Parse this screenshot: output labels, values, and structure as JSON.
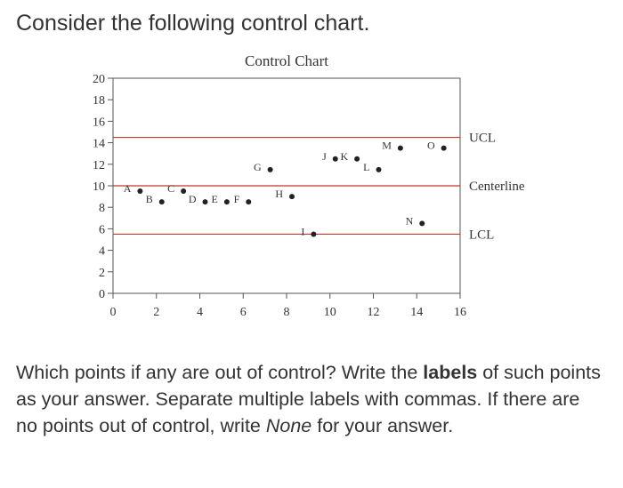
{
  "intro": "Consider the following control chart.",
  "question": {
    "part1": "Which points if any are out of control? Write the ",
    "bold": "labels",
    "part2": " of such points as your answer. Separate multiple labels with commas. If there are no points out of control, write ",
    "italic": "None",
    "part3": " for your answer."
  },
  "colors": {
    "limit_line": "#c0392b",
    "plot_frame": "#555555",
    "point": "#222222",
    "text": "#333333"
  },
  "chart_data": {
    "type": "scatter",
    "title": "Control Chart",
    "xlabel": "",
    "ylabel": "",
    "xlim": [
      0,
      16
    ],
    "ylim": [
      0,
      20
    ],
    "x_ticks": [
      0,
      2,
      4,
      6,
      8,
      10,
      12,
      14,
      16
    ],
    "y_ticks": [
      0,
      2,
      4,
      6,
      8,
      10,
      12,
      14,
      16,
      18,
      20
    ],
    "grid": false,
    "lines": [
      {
        "label": "UCL",
        "y": 14.5
      },
      {
        "label": "Centerline",
        "y": 10
      },
      {
        "label": "LCL",
        "y": 5.5
      }
    ],
    "points": [
      {
        "label": "A",
        "x": 1,
        "y": 9.5
      },
      {
        "label": "B",
        "x": 2,
        "y": 8.5
      },
      {
        "label": "C",
        "x": 3,
        "y": 9.5
      },
      {
        "label": "D",
        "x": 4,
        "y": 8.5
      },
      {
        "label": "E",
        "x": 5,
        "y": 8.5
      },
      {
        "label": "F",
        "x": 6,
        "y": 8.5
      },
      {
        "label": "G",
        "x": 7,
        "y": 11.5
      },
      {
        "label": "H",
        "x": 8,
        "y": 9.0
      },
      {
        "label": "I",
        "x": 9,
        "y": 5.5
      },
      {
        "label": "J",
        "x": 10,
        "y": 12.5
      },
      {
        "label": "K",
        "x": 11,
        "y": 12.5
      },
      {
        "label": "L",
        "x": 12,
        "y": 11.5
      },
      {
        "label": "M",
        "x": 13,
        "y": 13.5
      },
      {
        "label": "N",
        "x": 14,
        "y": 6.5
      },
      {
        "label": "O",
        "x": 15,
        "y": 13.5
      }
    ]
  }
}
